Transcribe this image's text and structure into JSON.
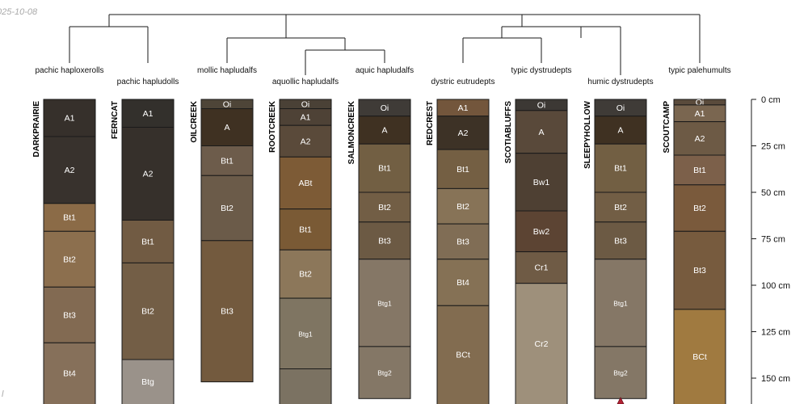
{
  "date_stamp": "025-10-08",
  "corner_mark": "l",
  "axis": {
    "unit": "cm",
    "max_depth": 160,
    "ticks": [
      0,
      25,
      50,
      75,
      100,
      125,
      150
    ]
  },
  "dendrogram_labels": [
    "pachic haploxerolls",
    "pachic hapludolls",
    "mollic hapludalfs",
    "aquollic hapludalfs",
    "aquic hapludalfs",
    "dystric eutrudepts",
    "typic dystrudepts",
    "humic dystrudepts",
    "typic palehumults"
  ],
  "profiles": [
    {
      "name": "DARKPRAIRIE",
      "horizons": [
        {
          "name": "A1",
          "top": 0,
          "bottom": 20,
          "color": "#36302b"
        },
        {
          "name": "A2",
          "top": 20,
          "bottom": 56,
          "color": "#38322d"
        },
        {
          "name": "Bt1",
          "top": 56,
          "bottom": 71,
          "color": "#8b6b47"
        },
        {
          "name": "Bt2",
          "top": 71,
          "bottom": 101,
          "color": "#8c6f4e"
        },
        {
          "name": "Bt3",
          "top": 101,
          "bottom": 131,
          "color": "#826a52"
        },
        {
          "name": "Bt4",
          "top": 131,
          "bottom": 165,
          "color": "#86705a"
        }
      ]
    },
    {
      "name": "FERNCAT",
      "horizons": [
        {
          "name": "A1",
          "top": 0,
          "bottom": 15,
          "color": "#33302c"
        },
        {
          "name": "A2",
          "top": 15,
          "bottom": 65,
          "color": "#36302b"
        },
        {
          "name": "Bt1",
          "top": 65,
          "bottom": 88,
          "color": "#715b43"
        },
        {
          "name": "Bt2",
          "top": 88,
          "bottom": 140,
          "color": "#735e46"
        },
        {
          "name": "Btg",
          "top": 140,
          "bottom": 165,
          "color": "#9a928a"
        }
      ]
    },
    {
      "name": "OILCREEK",
      "horizons": [
        {
          "name": "Oi",
          "top": 0,
          "bottom": 5,
          "color": "#4e4538"
        },
        {
          "name": "A",
          "top": 5,
          "bottom": 25,
          "color": "#3f3122"
        },
        {
          "name": "Bt1",
          "top": 25,
          "bottom": 41,
          "color": "#6d5c4b"
        },
        {
          "name": "Bt2",
          "top": 41,
          "bottom": 76,
          "color": "#6b5b49"
        },
        {
          "name": "Bt3",
          "top": 76,
          "bottom": 152,
          "color": "#735a3e"
        }
      ]
    },
    {
      "name": "ROOTCREEK",
      "horizons": [
        {
          "name": "Oi",
          "top": 0,
          "bottom": 5,
          "color": "#4a4136"
        },
        {
          "name": "A1",
          "top": 5,
          "bottom": 14,
          "color": "#4e4236"
        },
        {
          "name": "A2",
          "top": 14,
          "bottom": 31,
          "color": "#5a4a3a"
        },
        {
          "name": "ABt",
          "top": 31,
          "bottom": 59,
          "color": "#7d5b36"
        },
        {
          "name": "Bt1",
          "top": 59,
          "bottom": 81,
          "color": "#7a5a35"
        },
        {
          "name": "Bt2",
          "top": 81,
          "bottom": 107,
          "color": "#8c775a"
        },
        {
          "name": "Btg1",
          "top": 107,
          "bottom": 145,
          "color": "#7f7562"
        },
        {
          "name": "",
          "top": 145,
          "bottom": 165,
          "color": "#7b7262"
        }
      ]
    },
    {
      "name": "SALMONCREEK",
      "horizons": [
        {
          "name": "Oi",
          "top": 0,
          "bottom": 9,
          "color": "#3f3b37"
        },
        {
          "name": "A",
          "top": 9,
          "bottom": 24,
          "color": "#3f3122"
        },
        {
          "name": "Bt1",
          "top": 24,
          "bottom": 50,
          "color": "#725f43"
        },
        {
          "name": "Bt2",
          "top": 50,
          "bottom": 66,
          "color": "#725e45"
        },
        {
          "name": "Bt3",
          "top": 66,
          "bottom": 86,
          "color": "#6c5a44"
        },
        {
          "name": "Btg1",
          "top": 86,
          "bottom": 133,
          "color": "#857766"
        },
        {
          "name": "Btg2",
          "top": 133,
          "bottom": 161,
          "color": "#847766"
        }
      ]
    },
    {
      "name": "REDCREST",
      "horizons": [
        {
          "name": "A1",
          "top": 0,
          "bottom": 9,
          "color": "#73563c"
        },
        {
          "name": "A2",
          "top": 9,
          "bottom": 27,
          "color": "#3d3226"
        },
        {
          "name": "Bt1",
          "top": 27,
          "bottom": 48,
          "color": "#745f43"
        },
        {
          "name": "Bt2",
          "top": 48,
          "bottom": 67,
          "color": "#877357"
        },
        {
          "name": "Bt3",
          "top": 67,
          "bottom": 86,
          "color": "#806d55"
        },
        {
          "name": "Bt4",
          "top": 86,
          "bottom": 111,
          "color": "#857155"
        },
        {
          "name": "BCt",
          "top": 111,
          "bottom": 165,
          "color": "#826c50"
        }
      ]
    },
    {
      "name": "SCOTIABLUFFS",
      "horizons": [
        {
          "name": "Oi",
          "top": 0,
          "bottom": 6,
          "color": "#3c3834"
        },
        {
          "name": "A",
          "top": 6,
          "bottom": 29,
          "color": "#59493a"
        },
        {
          "name": "Bw1",
          "top": 29,
          "bottom": 60,
          "color": "#4e4033"
        },
        {
          "name": "Bw2",
          "top": 60,
          "bottom": 82,
          "color": "#5c4433"
        },
        {
          "name": "Cr1",
          "top": 82,
          "bottom": 99,
          "color": "#6f5b45"
        },
        {
          "name": "Cr2",
          "top": 99,
          "bottom": 165,
          "color": "#9e907b"
        }
      ]
    },
    {
      "name": "SLEEPYHOLLOW",
      "horizons": [
        {
          "name": "Oi",
          "top": 0,
          "bottom": 9,
          "color": "#3f3b37"
        },
        {
          "name": "A",
          "top": 9,
          "bottom": 24,
          "color": "#3f3122"
        },
        {
          "name": "Bt1",
          "top": 24,
          "bottom": 50,
          "color": "#725f43"
        },
        {
          "name": "Bt2",
          "top": 50,
          "bottom": 66,
          "color": "#725e45"
        },
        {
          "name": "Bt3",
          "top": 66,
          "bottom": 86,
          "color": "#6c5a44"
        },
        {
          "name": "Btg1",
          "top": 86,
          "bottom": 133,
          "color": "#857766"
        },
        {
          "name": "Btg2",
          "top": 133,
          "bottom": 161,
          "color": "#847766"
        }
      ]
    },
    {
      "name": "SCOUTCAMP",
      "horizons": [
        {
          "name": "Oi",
          "top": 0,
          "bottom": 3,
          "color": "#5a4b3c"
        },
        {
          "name": "A1",
          "top": 3,
          "bottom": 12,
          "color": "#7a6650"
        },
        {
          "name": "A2",
          "top": 12,
          "bottom": 30,
          "color": "#6d5a45"
        },
        {
          "name": "Bt1",
          "top": 30,
          "bottom": 46,
          "color": "#7c604a"
        },
        {
          "name": "Bt2",
          "top": 46,
          "bottom": 71,
          "color": "#7a5a3c"
        },
        {
          "name": "Bt3",
          "top": 71,
          "bottom": 113,
          "color": "#775b3e"
        },
        {
          "name": "BCt",
          "top": 113,
          "bottom": 165,
          "color": "#a07a40"
        }
      ]
    }
  ]
}
